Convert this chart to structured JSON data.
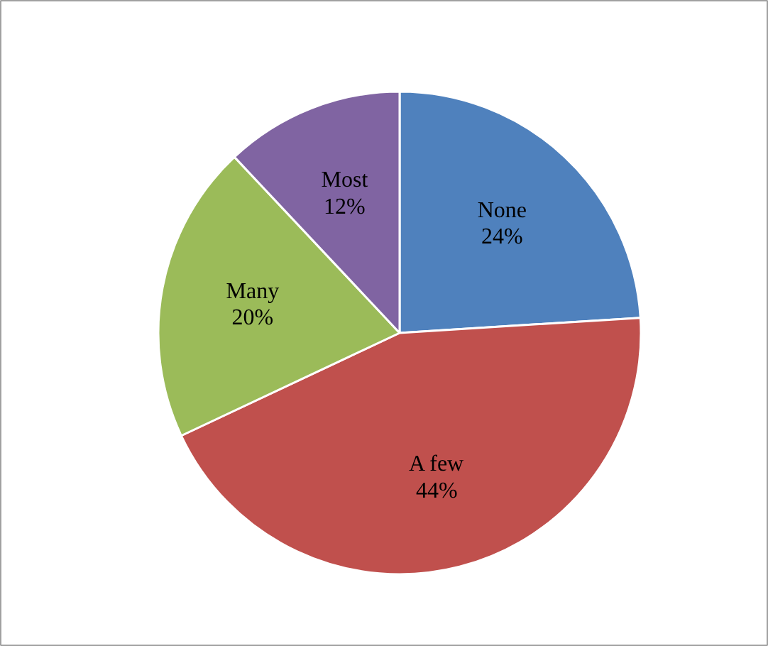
{
  "chart_data": {
    "type": "pie",
    "categories": [
      "None",
      "A few",
      "Many",
      "Most"
    ],
    "values": [
      24,
      44,
      20,
      12
    ],
    "colors": [
      "#4f81bd",
      "#c0504d",
      "#9bbb59",
      "#8064a2"
    ],
    "value_labels": [
      "24%",
      "44%",
      "20%",
      "12%"
    ],
    "legend": false
  }
}
